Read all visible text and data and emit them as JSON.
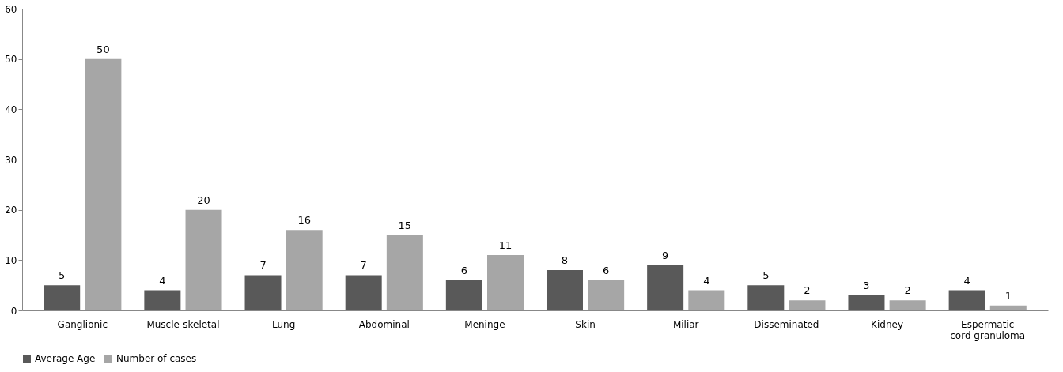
{
  "chart_data": {
    "type": "bar",
    "categories": [
      "Ganglionic",
      "Muscle-skeletal",
      "Lung",
      "Abdominal",
      "Meninge",
      "Skin",
      "Miliar",
      "Disseminated",
      "Kidney",
      "Espermatic cord granuloma"
    ],
    "series": [
      {
        "name": "Average Age",
        "color": "#595959",
        "values": [
          5,
          4,
          7,
          7,
          6,
          8,
          9,
          5,
          3,
          4
        ]
      },
      {
        "name": "Number of cases",
        "color": "#a6a6a6",
        "values": [
          50,
          20,
          16,
          15,
          11,
          6,
          4,
          2,
          2,
          1
        ]
      }
    ],
    "ylim": [
      0,
      60
    ],
    "yticks": [
      0,
      10,
      20,
      30,
      40,
      50,
      60
    ],
    "grid": false,
    "legend": "bottom",
    "data_labels": true
  }
}
